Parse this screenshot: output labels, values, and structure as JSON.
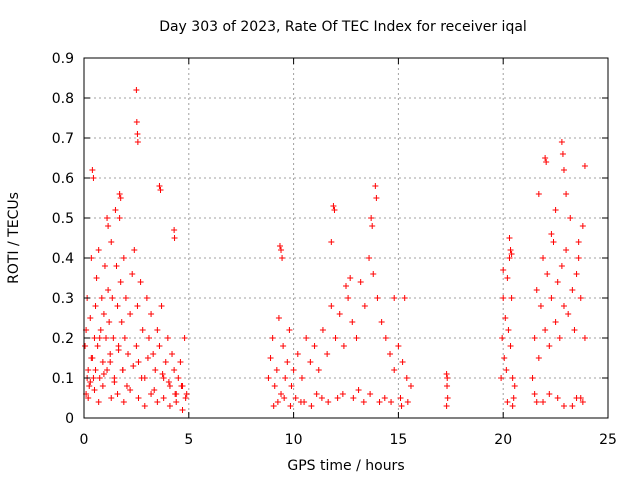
{
  "chart_data": {
    "type": "scatter",
    "title": "Day 303 of 2023, Rate Of TEC Index for receiver iqal",
    "xlabel": "GPS time / hours",
    "ylabel": "ROTI / TECUs",
    "xlim": [
      0,
      25
    ],
    "ylim": [
      0,
      0.9
    ],
    "xticks": [
      "0",
      "5",
      "10",
      "15",
      "20",
      "25"
    ],
    "xtick_values": [
      0,
      5,
      10,
      15,
      20,
      25
    ],
    "yticks": [
      "0",
      "0.1",
      "0.2",
      "0.3",
      "0.4",
      "0.5",
      "0.6",
      "0.7",
      "0.8",
      "0.9"
    ],
    "ytick_values": [
      0,
      0.1,
      0.2,
      0.3,
      0.4,
      0.5,
      0.6,
      0.7,
      0.8,
      0.9
    ],
    "grid": true,
    "marker": "+",
    "color": "#ff0000",
    "series": [
      {
        "x": [
          0.05,
          0.1,
          0.15,
          0.2,
          0.25,
          0.3,
          0.35,
          0.4,
          0.45,
          0.5,
          0.55,
          0.6,
          0.65,
          0.7,
          0.75,
          0.8,
          0.85,
          0.9,
          0.95,
          1.0,
          1.05,
          1.1,
          1.15,
          1.2,
          1.25,
          1.3,
          1.35,
          1.4,
          1.45,
          1.5,
          1.55,
          1.6,
          1.65,
          1.7,
          1.75,
          1.8,
          1.85,
          1.9,
          1.95,
          2.0,
          2.1,
          2.2,
          2.3,
          2.4,
          2.5,
          2.55,
          2.6,
          2.7,
          2.8,
          2.9,
          3.0,
          3.1,
          3.2,
          3.3,
          3.4,
          3.5,
          3.6,
          3.7,
          3.8,
          3.9,
          4.0,
          4.1,
          4.2,
          4.3,
          4.4,
          4.5,
          4.6,
          4.7,
          4.8,
          4.9,
          0.4,
          0.45,
          1.7,
          1.75,
          2.5,
          2.52,
          2.55,
          2.57,
          3.6,
          3.65,
          4.3,
          4.32,
          1.1,
          1.15,
          0.1,
          0.2,
          0.3,
          0.5,
          0.7,
          0.9,
          1.3,
          1.6,
          1.9,
          2.2,
          2.6,
          2.9,
          3.2,
          3.5,
          3.8,
          4.1,
          4.4,
          4.7,
          0.15,
          0.35,
          0.55,
          0.75,
          0.95,
          1.25,
          1.45,
          1.65,
          1.85,
          2.05,
          2.35,
          2.75,
          3.05,
          3.35,
          3.75,
          4.05,
          4.35,
          4.65,
          4.85,
          8.8,
          8.9,
          9.0,
          9.1,
          9.2,
          9.3,
          9.4,
          9.5,
          9.6,
          9.7,
          9.8,
          9.9,
          10.0,
          10.2,
          10.4,
          10.6,
          10.8,
          11.0,
          11.2,
          11.4,
          11.6,
          11.8,
          12.0,
          12.2,
          12.4,
          12.6,
          12.8,
          13.0,
          13.2,
          13.4,
          13.6,
          13.8,
          14.0,
          14.2,
          14.4,
          14.6,
          14.8,
          15.0,
          15.2,
          15.4,
          15.6,
          9.35,
          9.4,
          9.45,
          11.9,
          11.95,
          11.8,
          13.9,
          13.95,
          13.7,
          13.75,
          12.5,
          12.7,
          14.8,
          15.3,
          10.1,
          10.5,
          11.1,
          12.1,
          13.1,
          14.1,
          15.1,
          9.05,
          9.25,
          9.55,
          9.85,
          10.35,
          10.85,
          11.35,
          11.65,
          12.35,
          12.85,
          13.35,
          13.65,
          14.35,
          14.65,
          15.15,
          15.45,
          17.3,
          17.32,
          17.35,
          17.3,
          17.33,
          19.9,
          19.95,
          20.0,
          20.05,
          20.1,
          20.15,
          20.2,
          20.25,
          20.3,
          20.35,
          20.4,
          20.45,
          20.5,
          20.55,
          20.3,
          20.35,
          20.4,
          20.0,
          20.2,
          20.45,
          21.4,
          21.5,
          21.6,
          21.7,
          21.8,
          21.9,
          22.0,
          22.1,
          22.2,
          22.3,
          22.4,
          22.5,
          22.6,
          22.7,
          22.8,
          22.9,
          23.0,
          23.1,
          23.2,
          23.3,
          23.4,
          23.5,
          23.6,
          23.7,
          23.8,
          23.9,
          22.0,
          22.05,
          22.8,
          22.85,
          22.9,
          23.9,
          21.7,
          22.5,
          22.3,
          23.6,
          23.0,
          21.5,
          21.9,
          22.6,
          23.3,
          23.7,
          21.6,
          22.2,
          22.9,
          23.5,
          23.8
        ],
        "y": [
          0.18,
          0.22,
          0.3,
          0.12,
          0.08,
          0.25,
          0.4,
          0.15,
          0.1,
          0.2,
          0.28,
          0.35,
          0.18,
          0.42,
          0.1,
          0.22,
          0.3,
          0.14,
          0.26,
          0.38,
          0.2,
          0.12,
          0.32,
          0.24,
          0.16,
          0.44,
          0.3,
          0.2,
          0.1,
          0.52,
          0.38,
          0.28,
          0.18,
          0.5,
          0.34,
          0.24,
          0.12,
          0.4,
          0.2,
          0.3,
          0.16,
          0.26,
          0.36,
          0.42,
          0.18,
          0.28,
          0.14,
          0.34,
          0.22,
          0.1,
          0.3,
          0.2,
          0.26,
          0.16,
          0.12,
          0.22,
          0.18,
          0.28,
          0.1,
          0.14,
          0.2,
          0.08,
          0.16,
          0.12,
          0.06,
          0.1,
          0.14,
          0.08,
          0.2,
          0.06,
          0.62,
          0.6,
          0.56,
          0.55,
          0.82,
          0.74,
          0.71,
          0.69,
          0.58,
          0.57,
          0.47,
          0.45,
          0.5,
          0.48,
          0.06,
          0.05,
          0.09,
          0.07,
          0.04,
          0.08,
          0.05,
          0.06,
          0.04,
          0.07,
          0.05,
          0.03,
          0.06,
          0.04,
          0.05,
          0.03,
          0.04,
          0.02,
          0.1,
          0.15,
          0.12,
          0.2,
          0.11,
          0.14,
          0.09,
          0.17,
          0.12,
          0.08,
          0.13,
          0.1,
          0.15,
          0.07,
          0.11,
          0.09,
          0.06,
          0.08,
          0.05,
          0.1,
          0.15,
          0.2,
          0.08,
          0.12,
          0.25,
          0.06,
          0.18,
          0.1,
          0.14,
          0.22,
          0.08,
          0.12,
          0.16,
          0.1,
          0.2,
          0.14,
          0.18,
          0.12,
          0.22,
          0.16,
          0.28,
          0.2,
          0.26,
          0.18,
          0.3,
          0.24,
          0.2,
          0.34,
          0.28,
          0.4,
          0.36,
          0.3,
          0.24,
          0.2,
          0.16,
          0.12,
          0.18,
          0.14,
          0.1,
          0.08,
          0.43,
          0.42,
          0.4,
          0.53,
          0.52,
          0.44,
          0.58,
          0.55,
          0.5,
          0.48,
          0.33,
          0.35,
          0.3,
          0.3,
          0.05,
          0.04,
          0.06,
          0.05,
          0.07,
          0.04,
          0.05,
          0.03,
          0.04,
          0.05,
          0.03,
          0.04,
          0.03,
          0.05,
          0.04,
          0.06,
          0.05,
          0.04,
          0.06,
          0.05,
          0.04,
          0.03,
          0.04,
          0.11,
          0.08,
          0.05,
          0.03,
          0.1,
          0.1,
          0.2,
          0.3,
          0.15,
          0.25,
          0.12,
          0.35,
          0.22,
          0.4,
          0.18,
          0.3,
          0.1,
          0.05,
          0.08,
          0.45,
          0.42,
          0.41,
          0.37,
          0.04,
          0.03,
          0.1,
          0.2,
          0.32,
          0.15,
          0.28,
          0.4,
          0.22,
          0.36,
          0.18,
          0.3,
          0.44,
          0.24,
          0.34,
          0.2,
          0.38,
          0.28,
          0.42,
          0.26,
          0.5,
          0.32,
          0.22,
          0.36,
          0.44,
          0.3,
          0.48,
          0.2,
          0.65,
          0.64,
          0.69,
          0.66,
          0.62,
          0.63,
          0.56,
          0.52,
          0.46,
          0.4,
          0.56,
          0.06,
          0.04,
          0.05,
          0.03,
          0.05,
          0.04,
          0.06,
          0.03,
          0.05,
          0.04
        ]
      }
    ]
  }
}
